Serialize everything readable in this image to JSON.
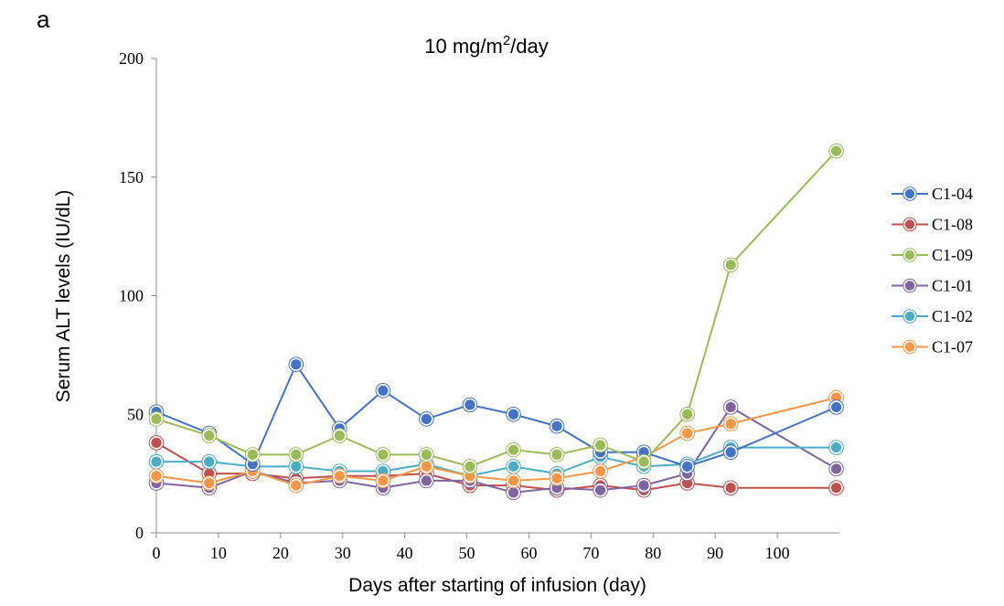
{
  "panel_label": "a",
  "chart_data": {
    "type": "line",
    "title": "10 mg/m",
    "title_superscript": "2",
    "title_suffix": "/day",
    "xlabel": "Days after starting of infusion (day)",
    "ylabel": "Serum ALT levels (IU/dL)",
    "xlim": [
      0,
      110
    ],
    "ylim": [
      0,
      200
    ],
    "x_ticks": [
      0,
      10,
      20,
      30,
      40,
      50,
      60,
      70,
      80,
      90,
      100
    ],
    "y_ticks": [
      0,
      50,
      100,
      150,
      200
    ],
    "grid": false,
    "legend_position": "right",
    "x": [
      0,
      8.5,
      15.5,
      22.5,
      29.5,
      36.5,
      43.5,
      50.5,
      57.5,
      64.5,
      71.5,
      78.5,
      85.5,
      92.5,
      109.5
    ],
    "series": [
      {
        "name": "C1-04",
        "color": "#4472c4",
        "values": [
          51,
          42,
          29,
          71,
          44,
          60,
          48,
          54,
          50,
          45,
          34,
          34,
          28,
          34,
          53
        ]
      },
      {
        "name": "C1-08",
        "color": "#c0504d",
        "values": [
          38,
          25,
          25,
          23,
          24,
          24,
          25,
          20,
          20,
          18,
          20,
          18,
          21,
          19,
          19
        ]
      },
      {
        "name": "C1-09",
        "color": "#9bbb59",
        "values": [
          48,
          41,
          33,
          33,
          41,
          33,
          33,
          28,
          35,
          33,
          37,
          30,
          50,
          113,
          161
        ]
      },
      {
        "name": "C1-01",
        "color": "#8064a2",
        "values": [
          21,
          19,
          26,
          21,
          22,
          19,
          22,
          22,
          17,
          19,
          18,
          20,
          25,
          53,
          27
        ]
      },
      {
        "name": "C1-02",
        "color": "#4bacc6",
        "values": [
          30,
          30,
          28,
          28,
          26,
          26,
          29,
          24,
          28,
          25,
          32,
          28,
          29,
          36,
          36
        ]
      },
      {
        "name": "C1-07",
        "color": "#f79646",
        "values": [
          24,
          21,
          26,
          20,
          24,
          22,
          28,
          24,
          22,
          23,
          26,
          32,
          42,
          46,
          57
        ]
      }
    ]
  }
}
